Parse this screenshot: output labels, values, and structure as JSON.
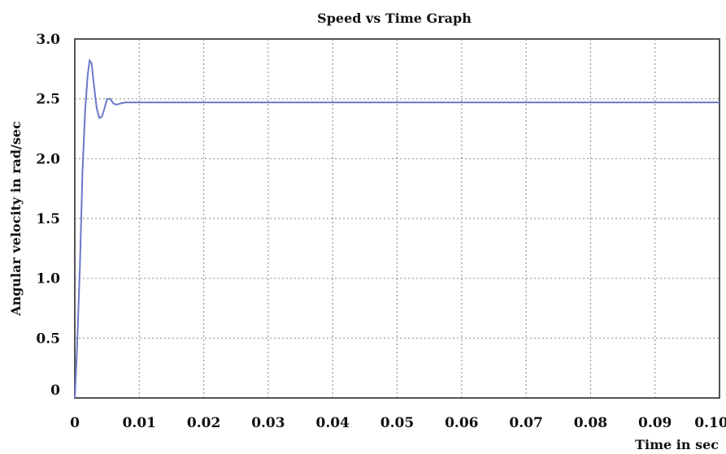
{
  "chart_data": {
    "type": "line",
    "title": "Speed vs Time Graph",
    "xlabel": "Time in sec",
    "ylabel": "Angular velocity in rad/sec",
    "xlim": [
      0,
      0.1
    ],
    "ylim": [
      0,
      3.0
    ],
    "grid": true,
    "x_ticks": [
      "0",
      "0.01",
      "0.02",
      "0.03",
      "0.04",
      "0.05",
      "0.06",
      "0.07",
      "0.08",
      "0.09",
      "0.10"
    ],
    "y_ticks": [
      "0",
      "0.5",
      "1.0",
      "1.5",
      "2.0",
      "2.5",
      "3.0"
    ],
    "series_color": "#6b78c8",
    "series": [
      {
        "x": [
          0,
          0.0003,
          0.0008,
          0.0012,
          0.0016,
          0.002,
          0.0023,
          0.0026,
          0.003,
          0.0034,
          0.0038,
          0.0042,
          0.0046,
          0.005,
          0.0055,
          0.006,
          0.0065,
          0.007,
          0.0078,
          0.0085,
          0.01,
          0.02,
          0.05,
          0.08,
          0.1
        ],
        "y": [
          0,
          0.35,
          1.1,
          1.9,
          2.4,
          2.7,
          2.82,
          2.8,
          2.6,
          2.42,
          2.34,
          2.35,
          2.42,
          2.5,
          2.5,
          2.46,
          2.45,
          2.46,
          2.47,
          2.47,
          2.47,
          2.47,
          2.47,
          2.47,
          2.47
        ]
      }
    ]
  }
}
